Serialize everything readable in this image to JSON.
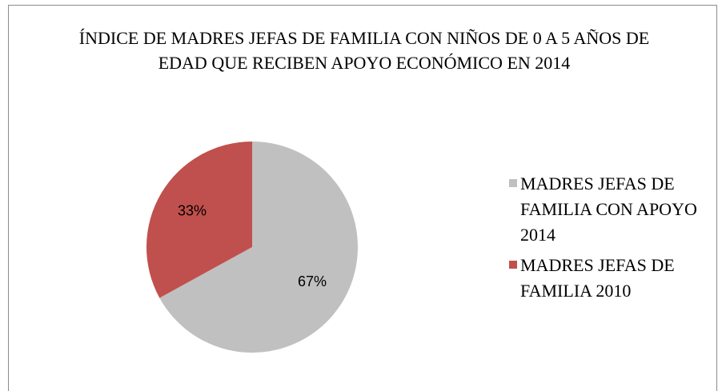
{
  "chart_data": {
    "type": "pie",
    "title": "ÍNDICE DE MADRES JEFAS DE FAMILIA CON NIÑOS DE 0 A 5 AÑOS DE EDAD QUE RECIBEN APOYO ECONÓMICO EN 2014",
    "categories": [
      "MADRES JEFAS DE FAMILIA CON APOYO 2014",
      "MADRES JEFAS DE FAMILIA 2010"
    ],
    "values": [
      67,
      33
    ],
    "value_labels": [
      "67%",
      "33%"
    ],
    "colors": [
      "#c0c0c0",
      "#c0504d"
    ],
    "legend": "right"
  }
}
